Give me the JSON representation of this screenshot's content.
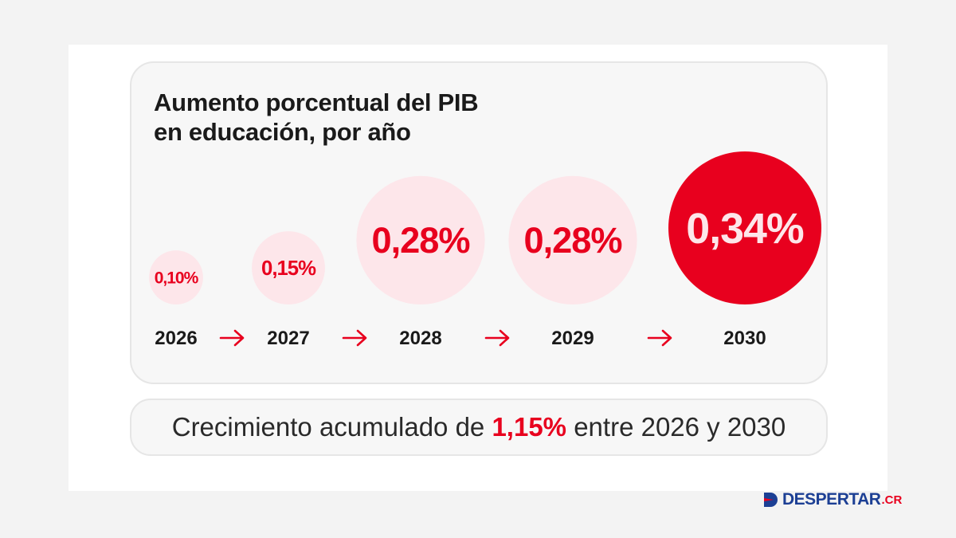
{
  "title_lines": [
    "Aumento porcentual del PIB",
    "en educación, por año"
  ],
  "chart_data": {
    "type": "bubble",
    "title": "Aumento porcentual del PIB en educación, por año",
    "categories": [
      "2026",
      "2027",
      "2028",
      "2029",
      "2030"
    ],
    "values": [
      0.1,
      0.15,
      0.28,
      0.28,
      0.34
    ],
    "labels": [
      "0,10%",
      "0,15%",
      "0,28%",
      "0,28%",
      "0,34%"
    ],
    "highlight_index": 4,
    "colors": {
      "light": "#fde6ea",
      "highlight": "#e8001e",
      "text_accent": "#e8001e",
      "text_dark": "#1a1a1a",
      "text_light": "#fde6ea"
    }
  },
  "summary": {
    "prefix": "Crecimiento acumulado de ",
    "highlight": "1,15%",
    "suffix": " entre 2026 y 2030"
  },
  "logo": {
    "word": "DESPERTAR",
    "tld": ".CR"
  }
}
